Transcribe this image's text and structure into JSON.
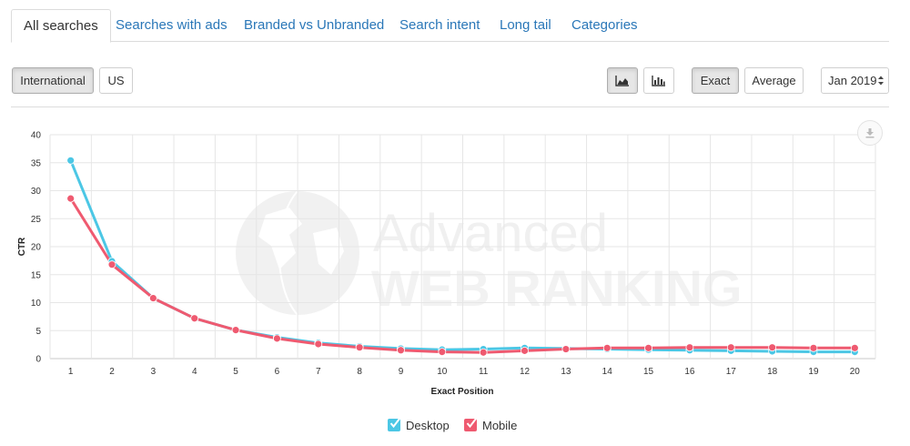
{
  "tabs": [
    {
      "label": "All searches",
      "active": true
    },
    {
      "label": "Searches with ads"
    },
    {
      "label": "Branded vs Unbranded"
    },
    {
      "label": "Search intent"
    },
    {
      "label": "Long tail"
    },
    {
      "label": "Categories"
    }
  ],
  "region_buttons": [
    {
      "label": "International",
      "active": true
    },
    {
      "label": "US"
    }
  ],
  "chart_type_buttons": [
    {
      "icon": "area-chart-icon",
      "active": true
    },
    {
      "icon": "bar-chart-icon"
    }
  ],
  "mode_buttons": [
    {
      "label": "Exact",
      "active": true
    },
    {
      "label": "Average"
    }
  ],
  "date_select": {
    "value": "Jan 2019"
  },
  "watermark": {
    "line1": "Advanced",
    "line2": "WEB RANKING"
  },
  "colors": {
    "desktop": "#4cc7e5",
    "mobile": "#ef5a70",
    "link": "#2a77b8"
  },
  "chart_data": {
    "type": "line",
    "xlabel": "Exact Position",
    "ylabel": "CTR",
    "ylim": [
      0,
      40
    ],
    "yticks": [
      0,
      5,
      10,
      15,
      20,
      25,
      30,
      35,
      40
    ],
    "grid": true,
    "legend_position": "bottom-center",
    "x": [
      1,
      2,
      3,
      4,
      5,
      6,
      7,
      8,
      9,
      10,
      11,
      12,
      13,
      14,
      15,
      16,
      17,
      18,
      19,
      20
    ],
    "series": [
      {
        "name": "Desktop",
        "color": "#4cc7e5",
        "values": [
          35.4,
          17.4,
          10.8,
          7.2,
          5.1,
          3.8,
          2.8,
          2.2,
          1.8,
          1.6,
          1.7,
          1.9,
          1.8,
          1.7,
          1.6,
          1.5,
          1.4,
          1.3,
          1.2,
          1.2
        ]
      },
      {
        "name": "Mobile",
        "color": "#ef5a70",
        "values": [
          28.6,
          16.8,
          10.8,
          7.2,
          5.1,
          3.6,
          2.6,
          2.0,
          1.5,
          1.2,
          1.1,
          1.4,
          1.7,
          1.9,
          1.9,
          2.0,
          2.0,
          2.0,
          1.9,
          1.9
        ]
      }
    ]
  }
}
